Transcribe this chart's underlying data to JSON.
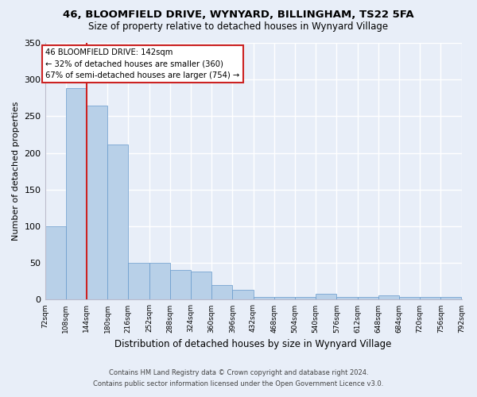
{
  "title1": "46, BLOOMFIELD DRIVE, WYNYARD, BILLINGHAM, TS22 5FA",
  "title2": "Size of property relative to detached houses in Wynyard Village",
  "xlabel": "Distribution of detached houses by size in Wynyard Village",
  "ylabel": "Number of detached properties",
  "footer1": "Contains HM Land Registry data © Crown copyright and database right 2024.",
  "footer2": "Contains public sector information licensed under the Open Government Licence v3.0.",
  "annotation_line1": "46 BLOOMFIELD DRIVE: 142sqm",
  "annotation_line2": "← 32% of detached houses are smaller (360)",
  "annotation_line3": "67% of semi-detached houses are larger (754) →",
  "bar_color": "#b8d0e8",
  "bar_edge_color": "#6699cc",
  "vline_color": "#cc2222",
  "background_color": "#e8eef8",
  "bin_edges": [
    72,
    108,
    144,
    180,
    216,
    252,
    288,
    324,
    360,
    396,
    432,
    468,
    504,
    540,
    576,
    612,
    648,
    684,
    720,
    756,
    792
  ],
  "bar_heights": [
    100,
    288,
    265,
    212,
    50,
    50,
    40,
    38,
    20,
    13,
    4,
    4,
    4,
    8,
    4,
    4,
    6,
    4,
    4,
    4
  ],
  "ylim": [
    0,
    350
  ],
  "yticks": [
    0,
    50,
    100,
    150,
    200,
    250,
    300,
    350
  ],
  "vline_x": 144
}
